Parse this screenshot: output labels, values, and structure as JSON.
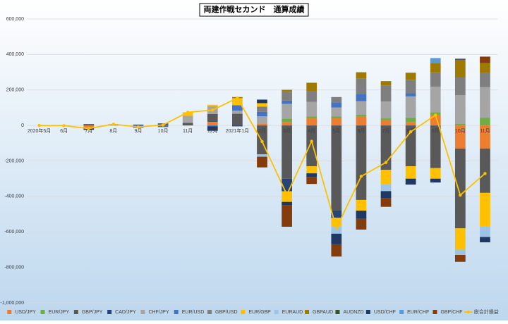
{
  "chart_data": {
    "type": "stacked-bar-line",
    "title": "両建作戦セカンド　通算成績",
    "categories": [
      "2020年5月",
      "6月",
      "7月",
      "8月",
      "9月",
      "10月",
      "11月",
      "12月",
      "2021年1月",
      "2月",
      "3月",
      "4月",
      "5月",
      "6月",
      "7月",
      "8月",
      "9月",
      "10月",
      "11月"
    ],
    "ylim": [
      -1000000,
      600000
    ],
    "yticks": [
      {
        "value": -1000000,
        "label": "-1,000,000"
      },
      {
        "value": -800000,
        "label": "-800,000"
      },
      {
        "value": -600000,
        "label": "-600,000"
      },
      {
        "value": -400000,
        "label": "-400,000"
      },
      {
        "value": -200000,
        "label": "-200,000"
      },
      0,
      {
        "value": 200000,
        "label": "200,000"
      },
      {
        "value": 400000,
        "label": "400,000"
      },
      {
        "value": 600000,
        "label": "600,000"
      }
    ],
    "grid": true,
    "legend": "bottom",
    "series": [
      {
        "name": "USD/JPY",
        "color": "#ed7d31",
        "values": [
          45,
          0,
          -13092,
          0,
          0,
          0,
          0,
          20000,
          0,
          10000,
          20000,
          40000,
          40000,
          50000,
          30000,
          20000,
          60000,
          -130000,
          -130000
        ]
      },
      {
        "name": "EUR/JPY",
        "color": "#70ad47",
        "values": [
          0,
          0,
          0,
          0,
          0,
          0,
          0,
          0,
          0,
          0,
          19079,
          10000,
          11579,
          10000,
          10000,
          24718,
          15000,
          10000,
          43938
        ]
      },
      {
        "name": "GBP/JPY",
        "color": "#595959",
        "values": [
          0,
          -892,
          8000,
          7003,
          5000,
          12000,
          14295,
          45000,
          65731,
          -163000,
          -300000,
          -230000,
          -480000,
          -420000,
          -250000,
          -230000,
          -240000,
          -450000,
          -250000
        ]
      },
      {
        "name": "CAD/JPY",
        "color": "#264478",
        "values": [
          0,
          0,
          -12000,
          0,
          0,
          0,
          0,
          0,
          0,
          0,
          -70886,
          0,
          -40000,
          0,
          0,
          0,
          0,
          0,
          0
        ]
      },
      {
        "name": "CHF/JPY",
        "color": "#a5a5a5",
        "values": [
          0,
          0,
          0,
          0,
          0,
          0,
          40000,
          43657,
          18000,
          41615,
          82771,
          82771,
          50000,
          77402,
          95060,
          119307,
          144038,
          160330,
          171945
        ]
      },
      {
        "name": "EUR/USD",
        "color": "#4472c4",
        "values": [
          0,
          0,
          0,
          0,
          -13461,
          -9137,
          0,
          -5229,
          30000,
          25000,
          18000,
          0,
          28421,
          40000,
          0,
          17000,
          0,
          0,
          0
        ]
      },
      {
        "name": "GBP/USD",
        "color": "#7f7f7f",
        "values": [
          0,
          0,
          0,
          0,
          0,
          0,
          0,
          0,
          0,
          30000,
          50000,
          60000,
          30000,
          86501,
          88797,
          76400,
          80000,
          100000,
          80000
        ]
      },
      {
        "name": "EUR/GBP",
        "color": "#ffc000",
        "values": [
          0,
          0,
          0,
          0,
          0,
          0,
          20000,
          8000,
          40000,
          19079,
          -60000,
          -39824,
          -50000,
          -60000,
          -80000,
          -70000,
          -60000,
          -120000,
          -190000
        ]
      },
      {
        "name": "EURAUD",
        "color": "#9dc3e6",
        "values": [
          0,
          0,
          0,
          0,
          0,
          0,
          0,
          0,
          0,
          -13347,
          0,
          0,
          -40000,
          0,
          -40000,
          0,
          0,
          -30000,
          -58680
        ]
      },
      {
        "name": "GBPAUD",
        "color": "#9e7a00",
        "values": [
          0,
          0,
          0,
          0,
          0,
          0,
          0,
          0,
          6444,
          0,
          11255,
          48000,
          0,
          36097,
          26143,
          40000,
          53391,
          100426,
          56307
        ]
      },
      {
        "name": "AUDNZD",
        "color": "#375623",
        "values": [
          0,
          0,
          0,
          0,
          0,
          0,
          0,
          0,
          0,
          0,
          0,
          0,
          0,
          0,
          0,
          0,
          0,
          0,
          0
        ]
      },
      {
        "name": "USD/CHF",
        "color": "#203864",
        "values": [
          0,
          0,
          0,
          0,
          0,
          0,
          0,
          -25000,
          -5000,
          20000,
          -20000,
          -20000,
          -60000,
          -46843,
          -40000,
          -33165,
          -21545,
          5244,
          -30000
        ]
      },
      {
        "name": "EUR/CHF",
        "color": "#5b9bd5",
        "values": [
          0,
          0,
          0,
          0,
          0,
          0,
          0,
          0,
          0,
          0,
          0,
          0,
          0,
          0,
          0,
          0,
          27571,
          0,
          0
        ]
      },
      {
        "name": "GBP/CHF",
        "color": "#843c0c",
        "values": [
          0,
          0,
          0,
          0,
          0,
          0,
          0,
          0,
          0,
          -60000,
          -120000,
          -40000,
          -68894,
          -60000,
          -48717,
          0,
          0,
          -38652,
          35810
        ]
      }
    ],
    "line": {
      "name": "総合計損益",
      "color": "#ffc000",
      "values": [
        45,
        -892,
        -17092,
        7003,
        -8461,
        2863,
        74295,
        86428,
        155175,
        -90653,
        -389781,
        -89053,
        -578894,
        -286843,
        -208717,
        -35740,
        58455,
        -392652,
        -270680
      ]
    }
  }
}
